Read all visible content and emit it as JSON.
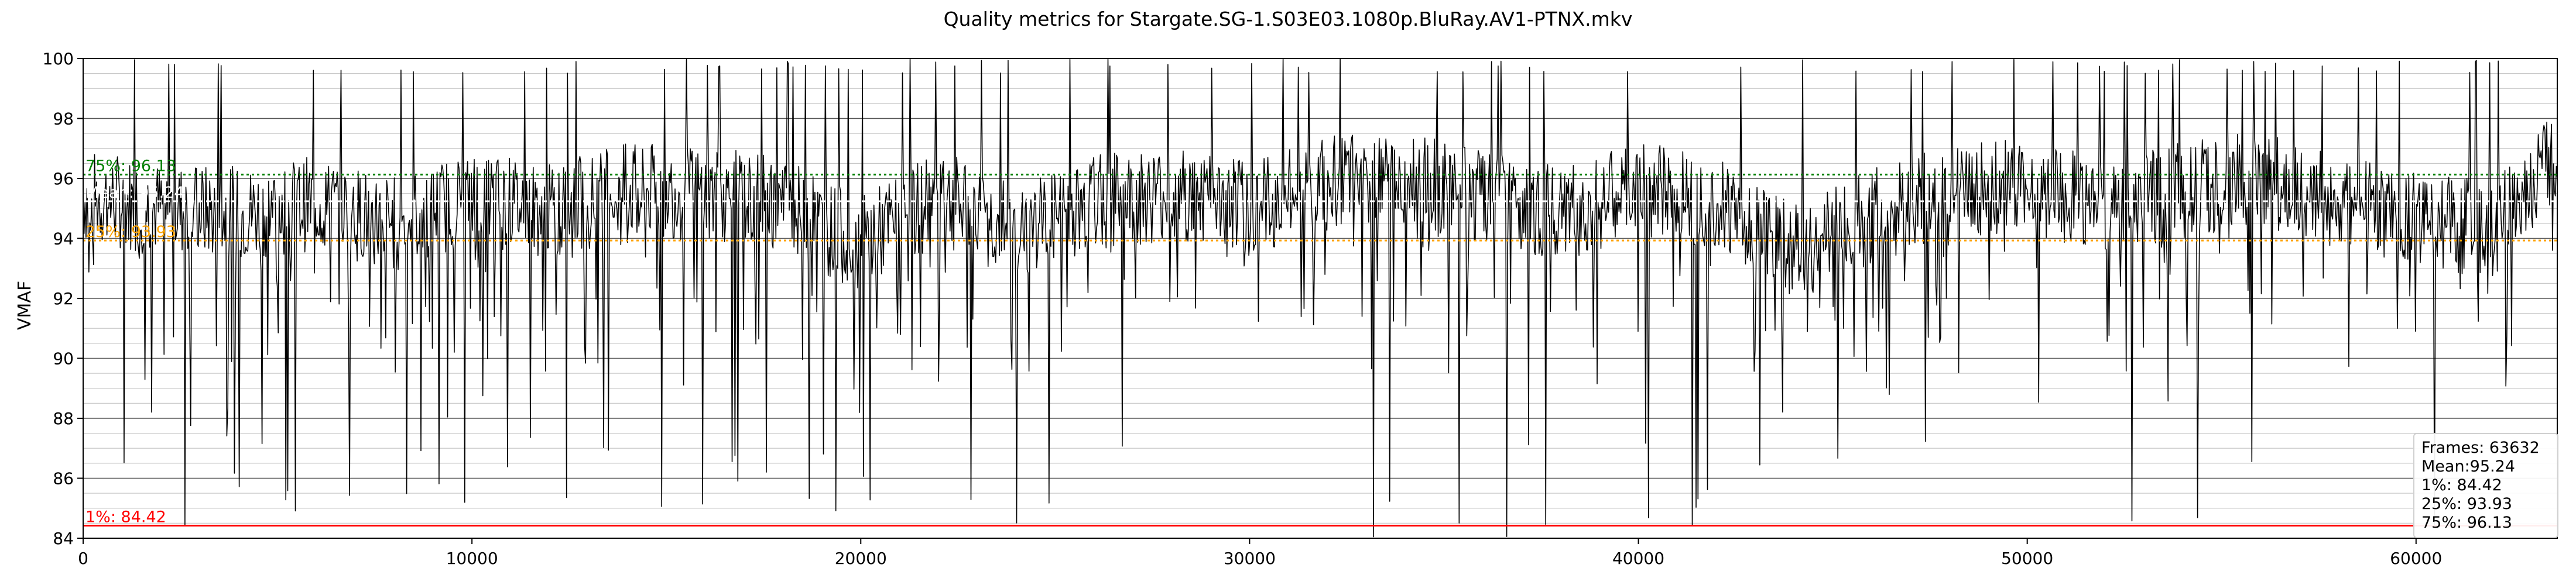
{
  "chart_data": {
    "type": "line",
    "title": "Quality metrics for Stargate.SG-1.S03E03.1080p.BluRay.AV1-PTNX.mkv",
    "xlabel": "",
    "ylabel": "VMAF",
    "xlim": [
      0,
      63632
    ],
    "ylim": [
      84,
      100
    ],
    "x_ticks": [
      0,
      10000,
      20000,
      30000,
      40000,
      50000,
      60000
    ],
    "y_ticks": [
      84,
      86,
      88,
      90,
      92,
      94,
      96,
      98,
      100
    ],
    "grid": true,
    "colors": {
      "series": "#000000",
      "p1": "#ff0000",
      "mean": "#ffffff",
      "p25": "#ffa500",
      "p75": "#008000"
    },
    "series": [
      {
        "x": [
          0,
          2000,
          4000,
          6000,
          8000,
          10000,
          12000,
          14000,
          16000,
          18000,
          20000,
          22000,
          24000,
          26000,
          28000,
          30000,
          32000,
          34000,
          36000,
          38000,
          40000,
          42000,
          44000,
          46000,
          48000,
          50000,
          52000,
          54000,
          56000,
          58000,
          60000,
          62000,
          63632
        ],
        "values": [
          95.4,
          95.0,
          94.8,
          95.2,
          94.5,
          95.4,
          94.9,
          95.6,
          95.5,
          95.1,
          93.8,
          95.4,
          94.2,
          95.2,
          95.5,
          95.0,
          95.8,
          96.0,
          95.3,
          94.8,
          95.6,
          95.3,
          93.5,
          94.7,
          95.6,
          95.7,
          95.1,
          95.6,
          96.0,
          95.2,
          94.6,
          94.3,
          96.9
        ]
      }
    ],
    "reference_lines": [
      {
        "label": "1%: 84.42",
        "value": 84.42
      },
      {
        "label": "Mean: 95.24",
        "value": 95.24
      },
      {
        "label": "25%: 93.93",
        "value": 93.93
      },
      {
        "label": "75%: 96.13",
        "value": 96.13
      }
    ],
    "stats": [
      "Frames: 63632",
      "Mean:95.24",
      "1%: 84.42",
      "25%: 93.93",
      "75%: 96.13"
    ]
  }
}
